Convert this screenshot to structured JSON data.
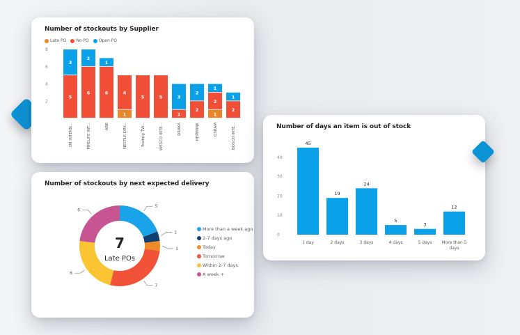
{
  "colors": {
    "late_po": "#e8862b",
    "no_po": "#f04e37",
    "open_po": "#0aa1e8",
    "more_than_week_ago": "#1aa3e8",
    "two_seven_days_ago": "#123f70",
    "today": "#f08c28",
    "tomorrow": "#f25338",
    "within_2_7_days": "#fac433",
    "a_week_plus": "#c85593",
    "days_bar": "#0aa1e8",
    "accent": "#0b93d6"
  },
  "chart_data": [
    {
      "id": "supplier",
      "type": "bar",
      "stacked": true,
      "title": "Number of stockouts by Supplier",
      "xlabel": "",
      "ylabel": "",
      "ylim": [
        0,
        8
      ],
      "yticks": [
        "2",
        "4",
        "6",
        "8"
      ],
      "legend_position": "top-left",
      "categories": [
        "3M INTERN...",
        "PIPELIFE INT...",
        "ABB",
        "NESTLE DRY...",
        "Trading TW...",
        "WESCO INTE...",
        "DRAKA",
        "HEMMINK",
        "OSRAM",
        "BOSCH INTE..."
      ],
      "series": [
        {
          "name": "Late PO",
          "values": [
            0,
            0,
            0,
            1,
            0,
            0,
            0,
            0,
            1,
            0
          ]
        },
        {
          "name": "No PO",
          "values": [
            5,
            6,
            6,
            4,
            5,
            5,
            1,
            2,
            2,
            2
          ]
        },
        {
          "name": "Open PO",
          "values": [
            3,
            2,
            1,
            0,
            0,
            0,
            3,
            2,
            1,
            1
          ]
        }
      ]
    },
    {
      "id": "delivery",
      "type": "pie",
      "donut": true,
      "title": "Number of stockouts by next expected delivery",
      "center_value": "7",
      "center_label": "Late POs",
      "legend_position": "right",
      "categories": [
        "More than a week ago",
        "2-7 days ago",
        "Today",
        "Tomorrow",
        "Within 2-7 days",
        "A week +"
      ],
      "values": [
        5,
        1,
        1,
        7,
        6,
        6
      ]
    },
    {
      "id": "days",
      "type": "bar",
      "title": "Number of days an item is out of stock",
      "xlabel": "",
      "ylabel": "",
      "ylim": [
        0,
        45
      ],
      "yticks": [
        "0",
        "10",
        "20",
        "30",
        "40"
      ],
      "categories": [
        "1 day",
        "2 days",
        "3 days",
        "4 days",
        "5 days",
        "More than 5 days"
      ],
      "values": [
        45,
        19,
        24,
        5,
        3,
        12
      ]
    }
  ]
}
